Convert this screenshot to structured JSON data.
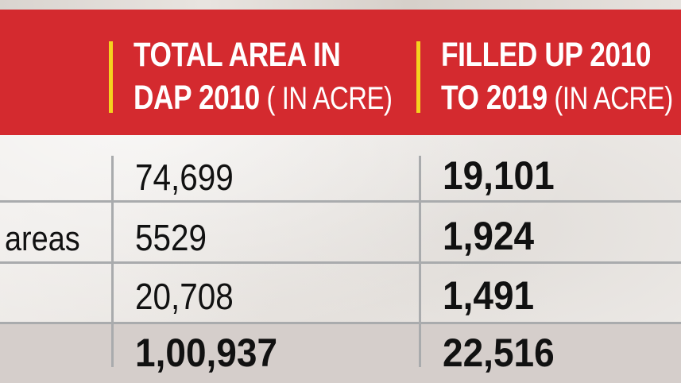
{
  "table": {
    "headers": [
      {
        "line1": "TOTAL AREA IN",
        "line2_main": "DAP 2010",
        "line2_unit": " ( IN ACRE)"
      },
      {
        "line1": "FILLED UP 2010",
        "line2_main": "TO 2019",
        "line2_unit": " (IN ACRE)"
      }
    ],
    "rows": [
      {
        "label": "",
        "total_area": "74,699",
        "filled_up": "19,101"
      },
      {
        "label": "areas",
        "total_area": "5529",
        "filled_up": "1,924"
      },
      {
        "label": "",
        "total_area": "20,708",
        "filled_up": "1,491"
      }
    ],
    "total_row": {
      "label": "",
      "total_area": "1,00,937",
      "filled_up": "22,516"
    }
  },
  "colors": {
    "header_bg": "#d42a2f",
    "header_accent": "#f5d21e",
    "header_text": "#ffffff",
    "grid_line": "#a9abad",
    "total_band": "#d5cecb"
  }
}
